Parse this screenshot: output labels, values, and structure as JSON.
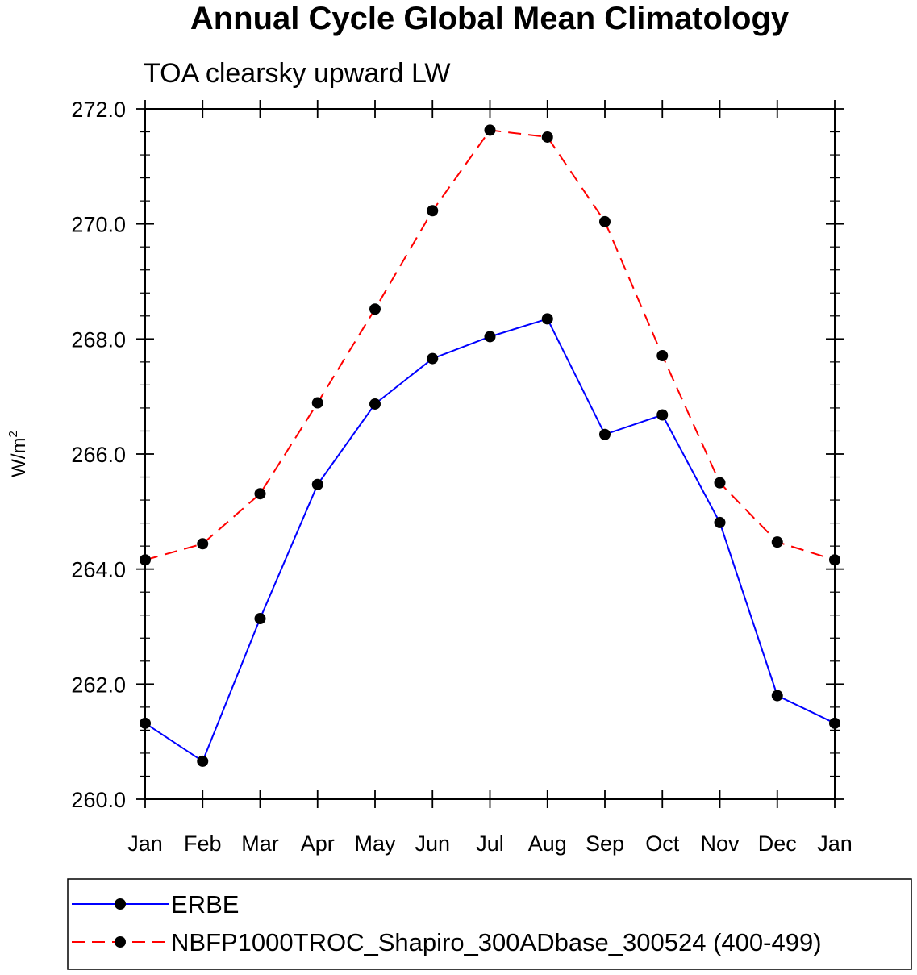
{
  "chart_data": {
    "type": "line",
    "title": "Annual Cycle Global Mean Climatology",
    "subtitle": "TOA clearsky upward LW",
    "ylabel": "W/m",
    "ylabel_superscript": "2",
    "xlabel": "",
    "categories": [
      "Jan",
      "Feb",
      "Mar",
      "Apr",
      "May",
      "Jun",
      "Jul",
      "Aug",
      "Sep",
      "Oct",
      "Nov",
      "Dec",
      "Jan"
    ],
    "ylim": [
      260.0,
      272.0
    ],
    "yticks": [
      "260.0",
      "262.0",
      "264.0",
      "266.0",
      "268.0",
      "270.0",
      "272.0"
    ],
    "grid": false,
    "legend_position": "bottom",
    "series": [
      {
        "name": "ERBE",
        "color": "#0000ff",
        "line_style": "solid",
        "marker": "filled-circle",
        "values": [
          261.32,
          260.66,
          263.14,
          265.47,
          266.87,
          267.66,
          268.04,
          268.35,
          266.34,
          266.68,
          264.81,
          261.8,
          261.32
        ]
      },
      {
        "name": "NBFP1000TROC_Shapiro_300ADbase_300524 (400-499)",
        "color": "#ff0000",
        "line_style": "dashed",
        "marker": "filled-circle",
        "values": [
          264.16,
          264.44,
          265.31,
          266.89,
          268.52,
          270.23,
          271.63,
          271.51,
          270.04,
          267.71,
          265.5,
          264.47,
          264.16
        ]
      }
    ]
  }
}
